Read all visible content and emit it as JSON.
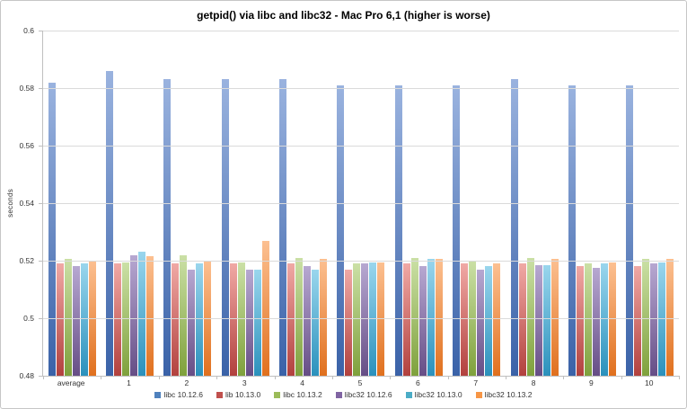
{
  "chart_data": {
    "type": "bar",
    "title": "getpid() via libc and libc32 - Mac Pro 6,1 (higher is worse)",
    "xlabel": "",
    "ylabel": "seconds",
    "ylim": [
      0.48,
      0.6
    ],
    "ytick_labels": [
      "0.6",
      "0.58",
      "0.56",
      "0.54",
      "0.52",
      "0.5",
      "0.48"
    ],
    "grid": true,
    "legend_position": "bottom",
    "categories": [
      "average",
      "1",
      "2",
      "3",
      "4",
      "5",
      "6",
      "7",
      "8",
      "9",
      "10"
    ],
    "series": [
      {
        "name": "libc 10.12.6",
        "color": "#4F81BD",
        "color_light": "#9AB3DF",
        "color_dark": "#3A62A8",
        "values": [
          0.582,
          0.586,
          0.583,
          0.583,
          0.583,
          0.581,
          0.581,
          0.581,
          0.583,
          0.581,
          0.581
        ]
      },
      {
        "name": "lib 10.13.0",
        "color": "#C0504D",
        "color_light": "#F0A9A5",
        "color_dark": "#B2413E",
        "values": [
          0.519,
          0.519,
          0.519,
          0.519,
          0.519,
          0.517,
          0.519,
          0.519,
          0.519,
          0.518,
          0.518
        ]
      },
      {
        "name": "libc 10.13.2",
        "color": "#9BBB59",
        "color_light": "#CBE0A6",
        "color_dark": "#7FA13C",
        "values": [
          0.5205,
          0.5195,
          0.522,
          0.5195,
          0.521,
          0.519,
          0.521,
          0.52,
          0.521,
          0.519,
          0.5205
        ]
      },
      {
        "name": "libc32 10.12.6",
        "color": "#8064A2",
        "color_light": "#B7A8D1",
        "color_dark": "#664E86",
        "values": [
          0.518,
          0.522,
          0.517,
          0.517,
          0.518,
          0.519,
          0.518,
          0.517,
          0.5185,
          0.5175,
          0.519
        ]
      },
      {
        "name": "libc32 10.13.0",
        "color": "#4BACC6",
        "color_light": "#9AD6ED",
        "color_dark": "#2B91BC",
        "values": [
          0.519,
          0.523,
          0.519,
          0.517,
          0.517,
          0.5195,
          0.5205,
          0.518,
          0.5185,
          0.519,
          0.5195
        ]
      },
      {
        "name": "libc32 10.13.2",
        "color": "#F79646",
        "color_light": "#FCC091",
        "color_dark": "#E0701E",
        "values": [
          0.52,
          0.5215,
          0.52,
          0.527,
          0.5205,
          0.5195,
          0.5205,
          0.519,
          0.5205,
          0.5195,
          0.5205
        ]
      }
    ]
  }
}
